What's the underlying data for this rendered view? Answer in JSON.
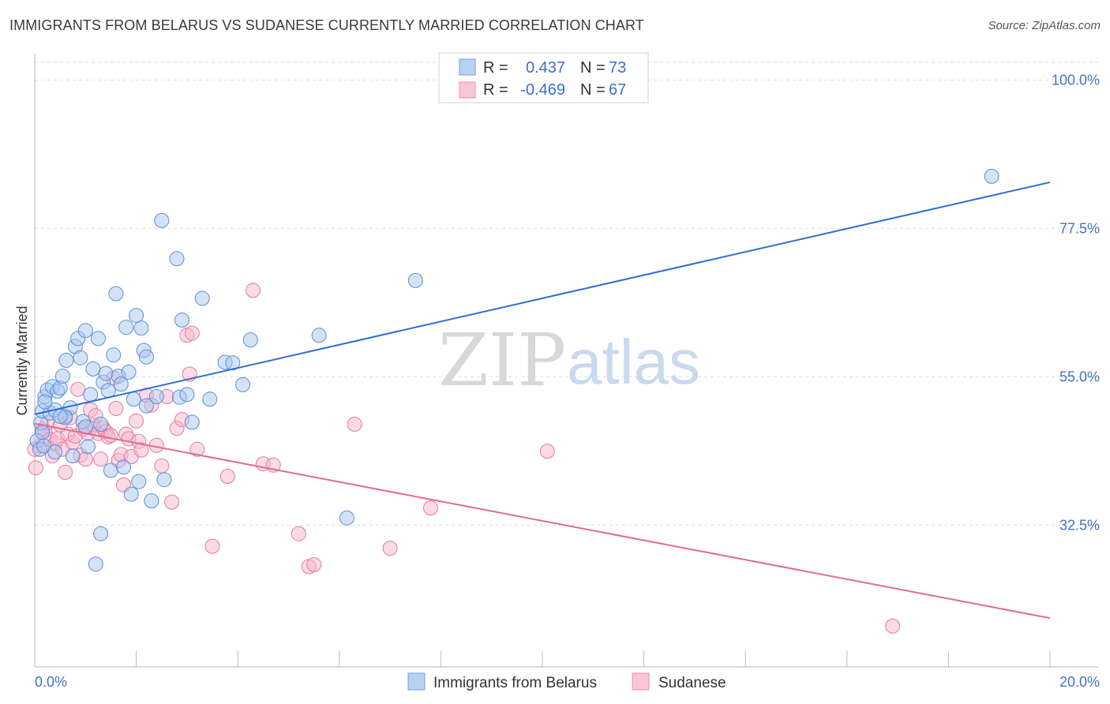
{
  "title": "IMMIGRANTS FROM BELARUS VS SUDANESE CURRENTLY MARRIED CORRELATION CHART",
  "source": "Source: ZipAtlas.com",
  "watermark": {
    "zip": "ZIP",
    "atlas": "atlas"
  },
  "colors": {
    "blue_fill": "#a9c6ee",
    "blue_stroke": "#5b8fd6",
    "blue_line": "#2e6fd0",
    "pink_fill": "#f6b8cb",
    "pink_stroke": "#e27aa0",
    "pink_line": "#e06a95",
    "grid": "#dedede",
    "axis_text": "#4472c4"
  },
  "legend": {
    "rows": [
      {
        "r_label": "R =",
        "r_value": "0.437",
        "n_label": "N =",
        "n_value": "73"
      },
      {
        "r_label": "R =",
        "r_value": "-0.469",
        "n_label": "N =",
        "n_value": "67"
      }
    ]
  },
  "chart_data": {
    "type": "scatter",
    "title": "IMMIGRANTS FROM BELARUS VS SUDANESE CURRENTLY MARRIED CORRELATION CHART",
    "xlabel": "",
    "ylabel": "Currently Married",
    "xlim": [
      0,
      20
    ],
    "ylim": [
      11,
      104
    ],
    "x_tick_labels": [
      "0.0%",
      "20.0%"
    ],
    "y_ticks": [
      32.5,
      55.0,
      77.5,
      100.0
    ],
    "y_tick_labels": [
      "32.5%",
      "55.0%",
      "77.5%",
      "100.0%"
    ],
    "grid": true,
    "legend_position": "top-center",
    "series": [
      {
        "name": "Immigrants from Belarus",
        "color": "#a9c6ee",
        "r": 0.437,
        "n": 73,
        "trend": [
          [
            0,
            49.3
          ],
          [
            20,
            84.5
          ]
        ],
        "points": [
          [
            0.05,
            45.3
          ],
          [
            0.1,
            44.0
          ],
          [
            0.12,
            48.0
          ],
          [
            0.15,
            46.6
          ],
          [
            0.15,
            49.8
          ],
          [
            0.18,
            44.5
          ],
          [
            0.2,
            52.0
          ],
          [
            0.25,
            53.0
          ],
          [
            0.3,
            49.5
          ],
          [
            0.35,
            53.5
          ],
          [
            0.4,
            50.0
          ],
          [
            0.45,
            52.8
          ],
          [
            0.5,
            53.3
          ],
          [
            0.55,
            55.1
          ],
          [
            0.6,
            49.0
          ],
          [
            0.62,
            57.5
          ],
          [
            0.7,
            50.3
          ],
          [
            0.75,
            43.0
          ],
          [
            0.8,
            59.6
          ],
          [
            0.85,
            60.8
          ],
          [
            0.9,
            57.9
          ],
          [
            0.95,
            48.2
          ],
          [
            1.0,
            62.0
          ],
          [
            1.05,
            44.4
          ],
          [
            1.1,
            52.3
          ],
          [
            1.15,
            56.2
          ],
          [
            1.2,
            26.6
          ],
          [
            1.25,
            60.8
          ],
          [
            1.3,
            31.2
          ],
          [
            1.35,
            54.2
          ],
          [
            1.4,
            55.5
          ],
          [
            1.45,
            52.9
          ],
          [
            1.5,
            40.8
          ],
          [
            1.55,
            58.3
          ],
          [
            1.6,
            67.6
          ],
          [
            1.65,
            55.1
          ],
          [
            1.7,
            53.9
          ],
          [
            1.75,
            41.3
          ],
          [
            1.8,
            62.5
          ],
          [
            1.85,
            55.7
          ],
          [
            1.9,
            37.2
          ],
          [
            1.95,
            51.6
          ],
          [
            2.0,
            64.3
          ],
          [
            2.05,
            39.1
          ],
          [
            2.1,
            62.4
          ],
          [
            2.15,
            59.0
          ],
          [
            2.2,
            58.0
          ],
          [
            2.3,
            36.2
          ],
          [
            2.4,
            52.0
          ],
          [
            2.5,
            78.7
          ],
          [
            2.55,
            39.4
          ],
          [
            2.8,
            72.9
          ],
          [
            2.85,
            51.9
          ],
          [
            2.9,
            63.6
          ],
          [
            3.0,
            52.3
          ],
          [
            3.1,
            48.1
          ],
          [
            3.3,
            66.9
          ],
          [
            3.45,
            51.6
          ],
          [
            3.75,
            57.2
          ],
          [
            3.9,
            57.1
          ],
          [
            4.1,
            53.8
          ],
          [
            4.25,
            60.6
          ],
          [
            5.6,
            61.3
          ],
          [
            6.15,
            33.6
          ],
          [
            7.5,
            69.6
          ],
          [
            18.85,
            85.4
          ],
          [
            0.4,
            43.6
          ],
          [
            0.6,
            48.8
          ],
          [
            1.0,
            47.4
          ],
          [
            1.3,
            47.8
          ],
          [
            0.2,
            51.2
          ],
          [
            0.5,
            49.0
          ],
          [
            2.2,
            50.6
          ]
        ]
      },
      {
        "name": "Sudanese",
        "color": "#f6b8cb",
        "r": -0.469,
        "n": 67,
        "trend": [
          [
            0,
            47.9
          ],
          [
            20,
            18.4
          ]
        ],
        "points": [
          [
            0.02,
            41.2
          ],
          [
            0.1,
            44.5
          ],
          [
            0.15,
            47.0
          ],
          [
            0.2,
            46.8
          ],
          [
            0.25,
            48.0
          ],
          [
            0.3,
            45.5
          ],
          [
            0.35,
            43.0
          ],
          [
            0.4,
            44.9
          ],
          [
            0.45,
            45.6
          ],
          [
            0.5,
            47.7
          ],
          [
            0.55,
            44.0
          ],
          [
            0.6,
            40.5
          ],
          [
            0.65,
            46.3
          ],
          [
            0.7,
            48.8
          ],
          [
            0.75,
            45.0
          ],
          [
            0.8,
            46.0
          ],
          [
            0.85,
            53.1
          ],
          [
            0.9,
            43.1
          ],
          [
            0.95,
            47.1
          ],
          [
            1.0,
            42.5
          ],
          [
            1.05,
            46.4
          ],
          [
            1.1,
            50.0
          ],
          [
            1.15,
            47.7
          ],
          [
            1.2,
            49.1
          ],
          [
            1.25,
            46.4
          ],
          [
            1.3,
            42.5
          ],
          [
            1.35,
            47.2
          ],
          [
            1.4,
            46.7
          ],
          [
            1.45,
            45.9
          ],
          [
            1.5,
            46.1
          ],
          [
            1.55,
            54.8
          ],
          [
            1.6,
            50.2
          ],
          [
            1.65,
            42.3
          ],
          [
            1.7,
            43.2
          ],
          [
            1.75,
            38.6
          ],
          [
            1.8,
            46.3
          ],
          [
            1.85,
            45.6
          ],
          [
            1.9,
            42.9
          ],
          [
            2.0,
            48.3
          ],
          [
            2.05,
            45.2
          ],
          [
            2.1,
            43.9
          ],
          [
            2.2,
            52.2
          ],
          [
            2.3,
            50.7
          ],
          [
            2.4,
            44.6
          ],
          [
            2.5,
            41.5
          ],
          [
            2.6,
            52.0
          ],
          [
            2.7,
            36.0
          ],
          [
            2.8,
            47.2
          ],
          [
            2.9,
            48.5
          ],
          [
            3.0,
            61.3
          ],
          [
            3.05,
            55.4
          ],
          [
            3.1,
            61.6
          ],
          [
            3.2,
            44.0
          ],
          [
            3.5,
            29.3
          ],
          [
            3.8,
            39.9
          ],
          [
            4.3,
            68.1
          ],
          [
            4.5,
            41.8
          ],
          [
            4.7,
            41.6
          ],
          [
            5.2,
            31.2
          ],
          [
            5.4,
            26.2
          ],
          [
            5.5,
            26.5
          ],
          [
            6.3,
            47.8
          ],
          [
            7.0,
            29.0
          ],
          [
            7.8,
            35.1
          ],
          [
            10.1,
            43.7
          ],
          [
            16.9,
            17.2
          ],
          [
            0.0,
            44.0
          ]
        ]
      }
    ]
  }
}
